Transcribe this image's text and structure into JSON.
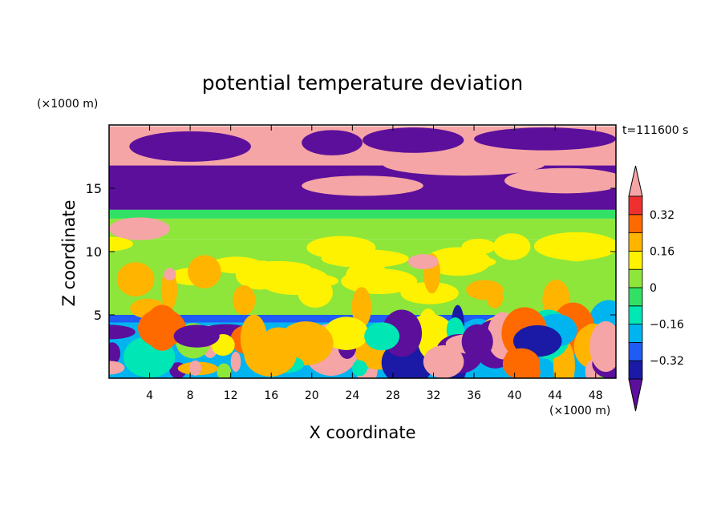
{
  "chart_data": {
    "type": "heatmap",
    "title": "potential temperature deviation",
    "xlabel": "X coordinate",
    "ylabel": "Z coordinate",
    "x_unit": "(×1000 m)",
    "y_unit": "(×1000 m)",
    "time_label": "t=111600 s",
    "xlim": [
      0,
      50
    ],
    "ylim": [
      0,
      20
    ],
    "x_ticks": [
      4,
      8,
      12,
      16,
      20,
      24,
      28,
      32,
      36,
      40,
      44,
      48
    ],
    "y_ticks": [
      5,
      10,
      15
    ],
    "colorbar": {
      "labels": [
        "0.32",
        "0.16",
        "0",
        "−0.16",
        "−0.32"
      ],
      "label_levels": [
        0.32,
        0.16,
        0,
        -0.16,
        -0.32
      ],
      "levels": [
        -0.4,
        -0.32,
        -0.24,
        -0.16,
        -0.08,
        0,
        0.08,
        0.16,
        0.24,
        0.32,
        0.4
      ],
      "colors": [
        "#5b0f9b",
        "#1a1aa6",
        "#1e5cf5",
        "#00b4f0",
        "#00e6b4",
        "#33e066",
        "#8ee63a",
        "#fff200",
        "#ffb400",
        "#ff6a00",
        "#f03030",
        "#f5a5a5"
      ],
      "extend": "both"
    },
    "regions": [
      {
        "band": [
          16.8,
          19.9
        ],
        "value": 0.45
      },
      {
        "band": [
          13.3,
          16.8
        ],
        "value": -0.45
      },
      {
        "band": [
          12.6,
          13.3
        ],
        "value": -0.08
      },
      {
        "band": [
          11.0,
          12.6
        ],
        "value": 0.04
      },
      {
        "band": [
          5.0,
          11.0
        ],
        "value": 0.06
      },
      {
        "band": [
          4.4,
          5.0
        ],
        "value": -0.3
      },
      {
        "band": [
          0,
          4.4
        ],
        "value": -0.2
      }
    ]
  }
}
